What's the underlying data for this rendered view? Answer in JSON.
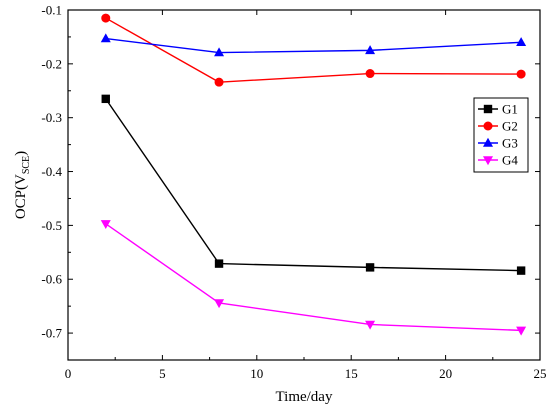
{
  "chart_data": {
    "type": "line",
    "xlabel": "Time/day",
    "ylabel": {
      "main": "OCP(V",
      "sub": "SCE",
      "close": ")"
    },
    "xlim": [
      0,
      25
    ],
    "ylim": [
      -0.75,
      -0.1
    ],
    "xticks": [
      0,
      5,
      10,
      15,
      20,
      25
    ],
    "yticks": [
      -0.1,
      -0.2,
      -0.3,
      -0.4,
      -0.5,
      -0.6,
      -0.7
    ],
    "xtick_labels": [
      "0",
      "5",
      "10",
      "15",
      "20",
      "25"
    ],
    "ytick_labels": [
      "-0.1",
      "-0.2",
      "-0.3",
      "-0.4",
      "-0.5",
      "-0.6",
      "-0.7"
    ],
    "grid": false,
    "legend_position": "right",
    "series": [
      {
        "name": "G1",
        "color": "#000000",
        "marker": "square",
        "x": [
          2,
          8,
          16,
          24
        ],
        "y": [
          -0.265,
          -0.571,
          -0.578,
          -0.584
        ]
      },
      {
        "name": "G2",
        "color": "#ff0000",
        "marker": "circle",
        "x": [
          2,
          8,
          16,
          24
        ],
        "y": [
          -0.115,
          -0.234,
          -0.218,
          -0.219
        ]
      },
      {
        "name": "G3",
        "color": "#0000ff",
        "marker": "triangle-up",
        "x": [
          2,
          8,
          16,
          24
        ],
        "y": [
          -0.153,
          -0.179,
          -0.175,
          -0.16
        ]
      },
      {
        "name": "G4",
        "color": "#ff00ff",
        "marker": "triangle-down",
        "x": [
          2,
          8,
          16,
          24
        ],
        "y": [
          -0.497,
          -0.644,
          -0.684,
          -0.695
        ]
      }
    ]
  }
}
